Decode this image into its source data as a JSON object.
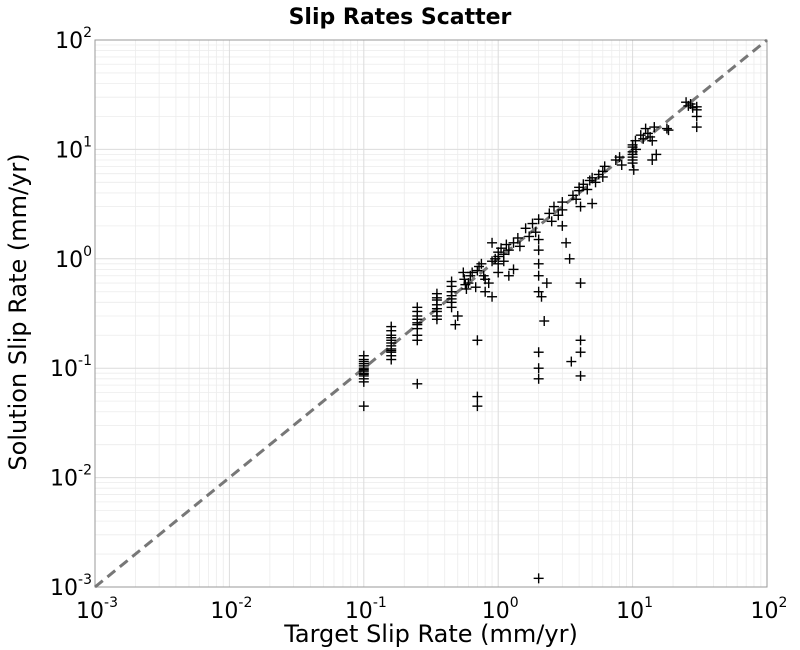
{
  "chart_data": {
    "type": "scatter",
    "title": "Slip Rates Scatter",
    "xlabel": "Target Slip Rate (mm/yr)",
    "ylabel": "Solution Slip Rate (mm/yr)",
    "xscale": "log",
    "yscale": "log",
    "xlim": [
      0.001,
      100
    ],
    "ylim": [
      0.001,
      100
    ],
    "x_ticks": [
      {
        "base": "10",
        "exp": "-3"
      },
      {
        "base": "10",
        "exp": "-2"
      },
      {
        "base": "10",
        "exp": "-1"
      },
      {
        "base": "10",
        "exp": "0"
      },
      {
        "base": "10",
        "exp": "1"
      },
      {
        "base": "10",
        "exp": "2"
      }
    ],
    "y_ticks": [
      {
        "base": "10",
        "exp": "-3"
      },
      {
        "base": "10",
        "exp": "-2"
      },
      {
        "base": "10",
        "exp": "-1"
      },
      {
        "base": "10",
        "exp": "0"
      },
      {
        "base": "10",
        "exp": "1"
      },
      {
        "base": "10",
        "exp": "2"
      }
    ],
    "grid": true,
    "marker": "+",
    "marker_color": "#000000",
    "reference_line": {
      "style": "dashed",
      "color": "#777777",
      "from": [
        0.001,
        0.001
      ],
      "to": [
        100,
        100
      ]
    },
    "points": [
      [
        0.1,
        0.13
      ],
      [
        0.1,
        0.12
      ],
      [
        0.1,
        0.115
      ],
      [
        0.1,
        0.11
      ],
      [
        0.1,
        0.105
      ],
      [
        0.1,
        0.1
      ],
      [
        0.1,
        0.097
      ],
      [
        0.1,
        0.094
      ],
      [
        0.1,
        0.09
      ],
      [
        0.1,
        0.088
      ],
      [
        0.1,
        0.085
      ],
      [
        0.1,
        0.08
      ],
      [
        0.1,
        0.075
      ],
      [
        0.1,
        0.045
      ],
      [
        0.16,
        0.24
      ],
      [
        0.16,
        0.22
      ],
      [
        0.16,
        0.2
      ],
      [
        0.16,
        0.19
      ],
      [
        0.16,
        0.18
      ],
      [
        0.16,
        0.17
      ],
      [
        0.16,
        0.16
      ],
      [
        0.16,
        0.15
      ],
      [
        0.16,
        0.145
      ],
      [
        0.16,
        0.14
      ],
      [
        0.16,
        0.13
      ],
      [
        0.16,
        0.12
      ],
      [
        0.25,
        0.36
      ],
      [
        0.25,
        0.33
      ],
      [
        0.25,
        0.3
      ],
      [
        0.25,
        0.28
      ],
      [
        0.25,
        0.26
      ],
      [
        0.25,
        0.25
      ],
      [
        0.25,
        0.23
      ],
      [
        0.25,
        0.2
      ],
      [
        0.25,
        0.18
      ],
      [
        0.25,
        0.072
      ],
      [
        0.35,
        0.48
      ],
      [
        0.35,
        0.44
      ],
      [
        0.35,
        0.42
      ],
      [
        0.35,
        0.38
      ],
      [
        0.35,
        0.35
      ],
      [
        0.35,
        0.33
      ],
      [
        0.35,
        0.3
      ],
      [
        0.35,
        0.28
      ],
      [
        0.45,
        0.62
      ],
      [
        0.45,
        0.56
      ],
      [
        0.45,
        0.5
      ],
      [
        0.45,
        0.46
      ],
      [
        0.45,
        0.43
      ],
      [
        0.45,
        0.4
      ],
      [
        0.45,
        0.36
      ],
      [
        0.48,
        0.25
      ],
      [
        0.5,
        0.3
      ],
      [
        0.55,
        0.75
      ],
      [
        0.56,
        0.65
      ],
      [
        0.57,
        0.58
      ],
      [
        0.58,
        0.53
      ],
      [
        0.6,
        0.6
      ],
      [
        0.62,
        0.7
      ],
      [
        0.64,
        0.75
      ],
      [
        0.68,
        0.55
      ],
      [
        0.7,
        0.18
      ],
      [
        0.7,
        0.055
      ],
      [
        0.7,
        0.045
      ],
      [
        0.7,
        0.78
      ],
      [
        0.72,
        0.85
      ],
      [
        0.75,
        0.9
      ],
      [
        0.78,
        0.7
      ],
      [
        0.8,
        0.65
      ],
      [
        0.8,
        0.5
      ],
      [
        0.85,
        0.6
      ],
      [
        0.9,
        0.95
      ],
      [
        0.9,
        0.45
      ],
      [
        0.95,
        1.0
      ],
      [
        1.0,
        1.05
      ],
      [
        1.0,
        1.15
      ],
      [
        1.0,
        0.9
      ],
      [
        1.05,
        1.25
      ],
      [
        1.1,
        1.1
      ],
      [
        1.15,
        1.35
      ],
      [
        1.2,
        1.2
      ],
      [
        1.3,
        1.4
      ],
      [
        1.3,
        0.8
      ],
      [
        1.4,
        1.55
      ],
      [
        1.45,
        1.3
      ],
      [
        0.9,
        1.4
      ],
      [
        1.0,
        0.75
      ],
      [
        1.1,
        0.95
      ],
      [
        1.2,
        0.7
      ],
      [
        1.6,
        1.9
      ],
      [
        1.7,
        1.6
      ],
      [
        1.8,
        2.1
      ],
      [
        1.9,
        1.75
      ],
      [
        2.0,
        2.3
      ],
      [
        2.0,
        1.5
      ],
      [
        2.0,
        1.2
      ],
      [
        2.0,
        0.9
      ],
      [
        2.0,
        0.7
      ],
      [
        2.0,
        0.5
      ],
      [
        2.0,
        0.14
      ],
      [
        2.0,
        0.1
      ],
      [
        2.0,
        0.08
      ],
      [
        2.0,
        0.0012
      ],
      [
        2.1,
        0.45
      ],
      [
        2.2,
        0.27
      ],
      [
        2.3,
        0.6
      ],
      [
        2.4,
        2.6
      ],
      [
        2.5,
        2.2
      ],
      [
        2.6,
        3.0
      ],
      [
        2.8,
        2.5
      ],
      [
        3.0,
        3.3
      ],
      [
        3.0,
        2.8
      ],
      [
        3.0,
        2.0
      ],
      [
        3.2,
        1.4
      ],
      [
        3.4,
        1.0
      ],
      [
        3.5,
        0.115
      ],
      [
        3.6,
        3.8
      ],
      [
        3.8,
        3.5
      ],
      [
        4.0,
        4.2
      ],
      [
        4.0,
        4.5
      ],
      [
        4.1,
        3.0
      ],
      [
        4.1,
        0.6
      ],
      [
        4.1,
        0.18
      ],
      [
        4.1,
        0.14
      ],
      [
        4.1,
        0.085
      ],
      [
        4.3,
        4.8
      ],
      [
        4.6,
        4.3
      ],
      [
        4.8,
        5.2
      ],
      [
        5.0,
        5.5
      ],
      [
        5.0,
        3.2
      ],
      [
        5.3,
        5.0
      ],
      [
        5.6,
        5.9
      ],
      [
        6.0,
        6.3
      ],
      [
        6.0,
        5.6
      ],
      [
        6.2,
        7.0
      ],
      [
        7.5,
        8.0
      ],
      [
        8.0,
        8.5
      ],
      [
        8.3,
        7.2
      ],
      [
        10.0,
        10.5
      ],
      [
        10.0,
        11.0
      ],
      [
        10.0,
        9.5
      ],
      [
        10.0,
        9.0
      ],
      [
        10.0,
        8.5
      ],
      [
        10.0,
        8.0
      ],
      [
        10.0,
        7.5
      ],
      [
        10.2,
        6.5
      ],
      [
        10.5,
        12.0
      ],
      [
        10.6,
        10.0
      ],
      [
        11.5,
        13.5
      ],
      [
        12.0,
        12.5
      ],
      [
        12.5,
        15.5
      ],
      [
        13.0,
        14.0
      ],
      [
        13.5,
        13.0
      ],
      [
        14.0,
        12.0
      ],
      [
        14.5,
        16.0
      ],
      [
        15.0,
        9.0
      ],
      [
        14.0,
        8.0
      ],
      [
        18.0,
        15.5
      ],
      [
        18.5,
        15.0
      ],
      [
        25.0,
        27.0
      ],
      [
        26.0,
        25.0
      ],
      [
        27.0,
        26.0
      ],
      [
        28.0,
        24.0
      ],
      [
        30.0,
        23.0
      ],
      [
        30.0,
        24.5
      ],
      [
        30.0,
        20.0
      ],
      [
        30.0,
        16.0
      ]
    ]
  }
}
